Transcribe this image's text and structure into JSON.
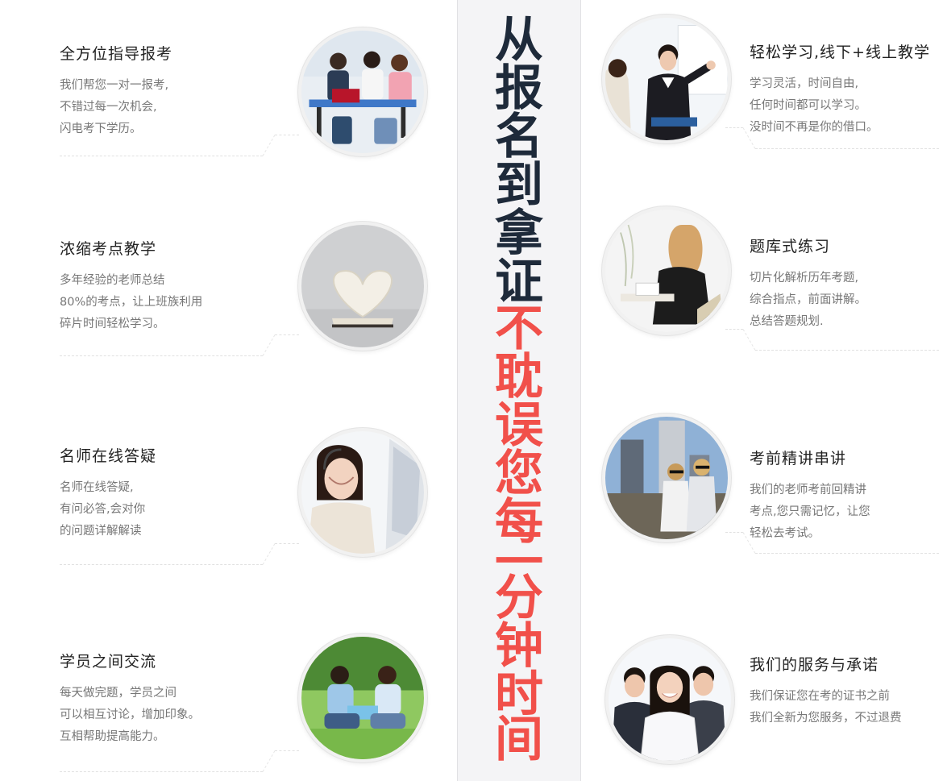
{
  "banner": {
    "dark_text": [
      "从",
      "报",
      "名",
      "到",
      "拿",
      "证"
    ],
    "red_text": [
      "不",
      "耽",
      "误",
      "您",
      "每",
      "一",
      "分",
      "钟",
      "时",
      "间"
    ],
    "dark_color": "#1e2a3a",
    "red_color": "#f1504a"
  },
  "left_items": [
    {
      "title": "全方位指导报考",
      "lines": [
        "我们帮您一对一报考,",
        "不错过每一次机会,",
        "闪电考下学历。"
      ],
      "photo": "students-at-table-photo"
    },
    {
      "title": "浓缩考点教学",
      "lines": [
        "多年经验的老师总结",
        "80%的考点，让上班族利用",
        "碎片时间轻松学习。"
      ],
      "photo": "heart-book-photo"
    },
    {
      "title": "名师在线答疑",
      "lines": [
        "名师在线答疑,",
        "有问必答,会对你",
        "的问题详解解读"
      ],
      "photo": "headset-teacher-photo"
    },
    {
      "title": "学员之间交流",
      "lines": [
        "每天做完题，学员之间",
        "可以相互讨论，增加印象。",
        "互相帮助提高能力。"
      ],
      "photo": "students-on-grass-photo"
    }
  ],
  "right_items": [
    {
      "title": "轻松学习,线下+线上教学",
      "lines": [
        "学习灵活，时间自由,",
        "任何时间都可以学习。",
        "没时间不再是你的借口。"
      ],
      "photo": "lecturer-whiteboard-photo"
    },
    {
      "title": "题库式练习",
      "lines": [
        "切片化解析历年考题,",
        "综合指点，前面讲解。",
        "总结答题规划."
      ],
      "photo": "woman-writing-photo"
    },
    {
      "title": "考前精讲串讲",
      "lines": [
        "我们的老师考前回精讲",
        "考点,您只需记忆，让您",
        "轻松去考试。"
      ],
      "photo": "city-women-photo"
    },
    {
      "title": "我们的服务与承诺",
      "lines": [
        "我们保证您在考的证书之前",
        "我们全新为您服务，不过退费"
      ],
      "photo": "business-team-photo"
    }
  ]
}
